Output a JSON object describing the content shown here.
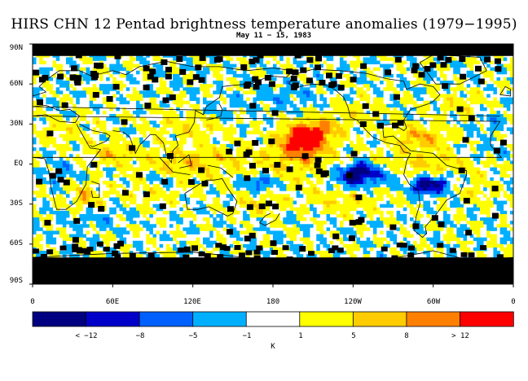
{
  "map": {
    "title": "HIRS CHN 12 Pentad brightness temperature anomalies (1979−1995)",
    "subtitle": "May 11 − 15, 1983",
    "lat_labels": [
      "90N",
      "60N",
      "30N",
      "EQ",
      "30S",
      "60S",
      "90S"
    ],
    "lon_labels": [
      "0",
      "60E",
      "120E",
      "180",
      "120W",
      "60W",
      "0"
    ],
    "unit": "K",
    "projection": "equirectangular",
    "lon_range": [
      0,
      360
    ],
    "lat_range": [
      -90,
      90
    ]
  },
  "colorbar": {
    "labels": [
      "< −12",
      "−8",
      "−5",
      "−1",
      "1",
      "5",
      "8",
      "> 12"
    ],
    "bins": [
      {
        "from": null,
        "to": -12,
        "color": "#000080"
      },
      {
        "from": -12,
        "to": -8,
        "color": "#0000c8"
      },
      {
        "from": -8,
        "to": -5,
        "color": "#0060ff"
      },
      {
        "from": -5,
        "to": -1,
        "color": "#00b0ff"
      },
      {
        "from": -1,
        "to": 1,
        "color": "#ffffff"
      },
      {
        "from": 1,
        "to": 5,
        "color": "#ffff00"
      },
      {
        "from": 5,
        "to": 8,
        "color": "#ffcc00"
      },
      {
        "from": 8,
        "to": 12,
        "color": "#ff8000"
      },
      {
        "from": 12,
        "to": null,
        "color": "#ff0000"
      }
    ],
    "missing_color": "#000000"
  }
}
